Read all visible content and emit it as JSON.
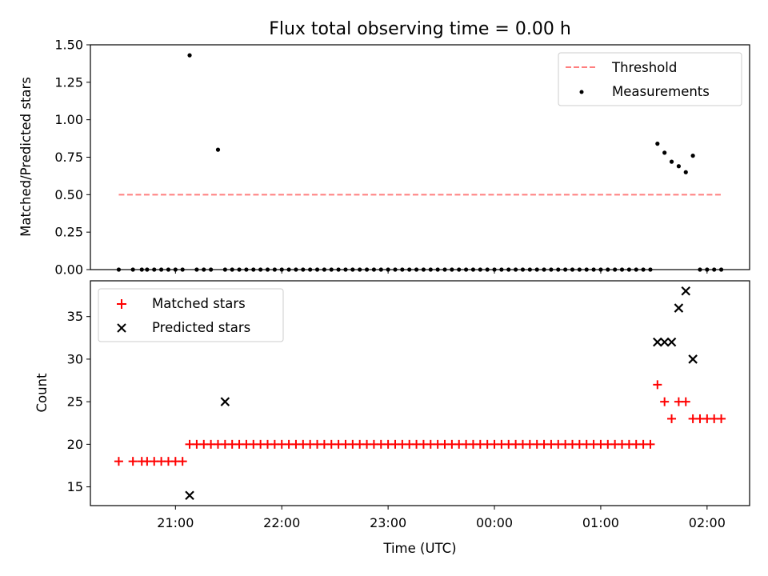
{
  "figure": {
    "title": "Flux total observing time = 0.00 h"
  },
  "colors": {
    "threshold": "#ff7f7f",
    "measurements": "#000000",
    "matched": "#ff0000",
    "predicted": "#000000"
  },
  "chart_data": [
    {
      "type": "scatter",
      "panel": "top",
      "title": "Flux total observing time = 0.00 h",
      "xlabel": "",
      "ylabel": "Matched/Predicted stars",
      "x_is_time": true,
      "xlim": [
        "20:12",
        "02:24"
      ],
      "ylim": [
        0,
        1.5
      ],
      "yticks": [
        "0.00",
        "0.25",
        "0.50",
        "0.75",
        "1.00",
        "1.25",
        "1.50"
      ],
      "xticks": [
        "21:00",
        "22:00",
        "23:00",
        "00:00",
        "01:00",
        "02:00"
      ],
      "grid": false,
      "legend_position": "top-right",
      "legend": [
        "Threshold",
        "Measurements"
      ],
      "series": [
        {
          "name": "Threshold",
          "style": "dashed-line",
          "x": [
            "20:28",
            "02:08"
          ],
          "y": [
            0.5,
            0.5
          ]
        },
        {
          "name": "Measurements",
          "style": "dot",
          "x": [
            "20:28",
            "20:36",
            "20:41",
            "20:44",
            "20:48",
            "20:52",
            "20:56",
            "21:00",
            "21:04",
            "21:08",
            "21:12",
            "21:16",
            "21:20",
            "21:24",
            "21:28",
            "21:32",
            "21:36",
            "21:40",
            "21:44",
            "21:48",
            "21:52",
            "21:56",
            "22:00",
            "22:04",
            "22:08",
            "22:12",
            "22:16",
            "22:20",
            "22:24",
            "22:28",
            "22:32",
            "22:36",
            "22:40",
            "22:44",
            "22:48",
            "22:52",
            "22:56",
            "23:00",
            "23:04",
            "23:08",
            "23:12",
            "23:16",
            "23:20",
            "23:24",
            "23:28",
            "23:32",
            "23:36",
            "23:40",
            "23:44",
            "23:48",
            "23:52",
            "23:56",
            "00:00",
            "00:04",
            "00:08",
            "00:12",
            "00:16",
            "00:20",
            "00:24",
            "00:28",
            "00:32",
            "00:36",
            "00:40",
            "00:44",
            "00:48",
            "00:52",
            "00:56",
            "01:00",
            "01:04",
            "01:08",
            "01:12",
            "01:16",
            "01:20",
            "01:24",
            "01:28",
            "01:32",
            "01:36",
            "01:40",
            "01:44",
            "01:48",
            "01:52",
            "01:56",
            "02:00",
            "02:04",
            "02:08"
          ],
          "y": [
            0,
            0,
            0,
            0,
            0,
            0,
            0,
            0,
            0,
            1.43,
            0,
            0,
            0,
            0.8,
            0,
            0,
            0,
            0,
            0,
            0,
            0,
            0,
            0,
            0,
            0,
            0,
            0,
            0,
            0,
            0,
            0,
            0,
            0,
            0,
            0,
            0,
            0,
            0,
            0,
            0,
            0,
            0,
            0,
            0,
            0,
            0,
            0,
            0,
            0,
            0,
            0,
            0,
            0,
            0,
            0,
            0,
            0,
            0,
            0,
            0,
            0,
            0,
            0,
            0,
            0,
            0,
            0,
            0,
            0,
            0,
            0,
            0,
            0,
            0,
            0,
            0.84,
            0.78,
            0.72,
            0.69,
            0.65,
            0.76,
            0,
            0,
            0,
            0
          ]
        }
      ]
    },
    {
      "type": "scatter",
      "panel": "bottom",
      "xlabel": "Time (UTC)",
      "ylabel": "Count",
      "x_is_time": true,
      "xlim": [
        "20:12",
        "02:24"
      ],
      "ylim": [
        12.8,
        39.2
      ],
      "yticks": [
        "15",
        "20",
        "25",
        "30",
        "35"
      ],
      "xticks": [
        "21:00",
        "22:00",
        "23:00",
        "00:00",
        "01:00",
        "02:00"
      ],
      "grid": false,
      "legend_position": "top-left",
      "legend": [
        "Matched stars",
        "Predicted stars"
      ],
      "series": [
        {
          "name": "Matched stars",
          "style": "plus",
          "x": [
            "20:28",
            "20:36",
            "20:41",
            "20:44",
            "20:48",
            "20:52",
            "20:56",
            "21:00",
            "21:04",
            "21:08",
            "21:12",
            "21:16",
            "21:20",
            "21:24",
            "21:28",
            "21:32",
            "21:36",
            "21:40",
            "21:44",
            "21:48",
            "21:52",
            "21:56",
            "22:00",
            "22:04",
            "22:08",
            "22:12",
            "22:16",
            "22:20",
            "22:24",
            "22:28",
            "22:32",
            "22:36",
            "22:40",
            "22:44",
            "22:48",
            "22:52",
            "22:56",
            "23:00",
            "23:04",
            "23:08",
            "23:12",
            "23:16",
            "23:20",
            "23:24",
            "23:28",
            "23:32",
            "23:36",
            "23:40",
            "23:44",
            "23:48",
            "23:52",
            "23:56",
            "00:00",
            "00:04",
            "00:08",
            "00:12",
            "00:16",
            "00:20",
            "00:24",
            "00:28",
            "00:32",
            "00:36",
            "00:40",
            "00:44",
            "00:48",
            "00:52",
            "00:56",
            "01:00",
            "01:04",
            "01:08",
            "01:12",
            "01:16",
            "01:20",
            "01:24",
            "01:28",
            "01:32",
            "01:36",
            "01:40",
            "01:44",
            "01:48",
            "01:52",
            "01:56",
            "02:00",
            "02:04",
            "02:08"
          ],
          "y": [
            18,
            18,
            18,
            18,
            18,
            18,
            18,
            18,
            18,
            20,
            20,
            20,
            20,
            20,
            20,
            20,
            20,
            20,
            20,
            20,
            20,
            20,
            20,
            20,
            20,
            20,
            20,
            20,
            20,
            20,
            20,
            20,
            20,
            20,
            20,
            20,
            20,
            20,
            20,
            20,
            20,
            20,
            20,
            20,
            20,
            20,
            20,
            20,
            20,
            20,
            20,
            20,
            20,
            20,
            20,
            20,
            20,
            20,
            20,
            20,
            20,
            20,
            20,
            20,
            20,
            20,
            20,
            20,
            20,
            20,
            20,
            20,
            20,
            20,
            20,
            27,
            25,
            23,
            25,
            25,
            23,
            23,
            23,
            23,
            23
          ]
        },
        {
          "name": "Predicted stars",
          "style": "x",
          "x": [
            "21:08",
            "21:28",
            "01:32",
            "01:36",
            "01:40",
            "01:44",
            "01:48",
            "01:52"
          ],
          "y": [
            14,
            25,
            32,
            32,
            32,
            36,
            38,
            30
          ]
        }
      ]
    }
  ]
}
